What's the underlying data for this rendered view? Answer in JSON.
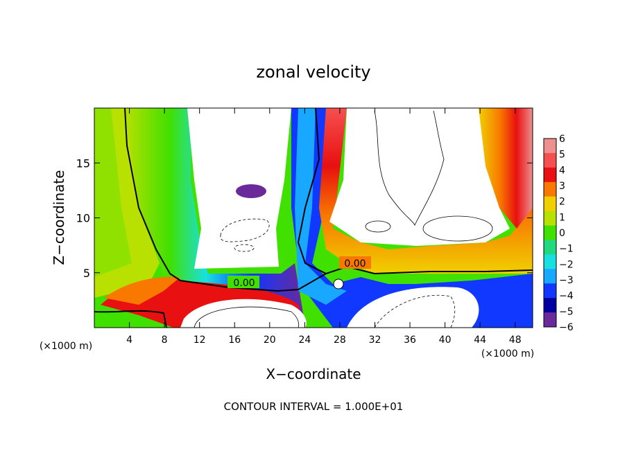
{
  "chart_data": {
    "type": "heatmap",
    "title": "zonal velocity",
    "xlabel": "X−coordinate",
    "ylabel": "Z−coordinate",
    "x_unit_left": "(×1000 m)",
    "x_unit_right": "(×1000 m)",
    "xlim": [
      0,
      50
    ],
    "ylim": [
      0,
      20
    ],
    "x_ticks": [
      4,
      8,
      12,
      16,
      20,
      24,
      28,
      32,
      36,
      40,
      44,
      48
    ],
    "y_ticks": [
      5,
      10,
      15
    ],
    "colorbar": {
      "ticks": [
        "6",
        "5",
        "4",
        "3",
        "2",
        "1",
        "0",
        "−1",
        "−2",
        "−3",
        "−4",
        "−5",
        "−6"
      ],
      "colors": [
        "#ee9090",
        "#f55050",
        "#e81010",
        "#f87800",
        "#f0d000",
        "#b8e000",
        "#40e000",
        "#20d880",
        "#18e0e0",
        "#18a8ff",
        "#1038ff",
        "#0000a0",
        "#6a2a9a"
      ]
    },
    "contour_labels": [
      {
        "text": "0.00",
        "x": 17.3,
        "z": 4.0
      },
      {
        "text": "0.00",
        "x": 29.6,
        "z": 5.9
      }
    ],
    "footer": "CONTOUR INTERVAL = 1.000E+01"
  }
}
